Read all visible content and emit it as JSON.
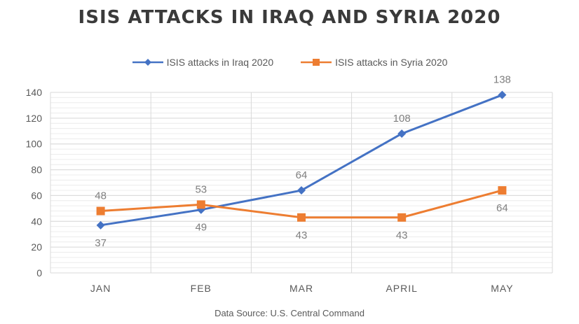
{
  "chart_data": {
    "type": "line",
    "title": "ISIS ATTACKS IN IRAQ AND SYRIA 2020",
    "categories": [
      "JAN",
      "FEB",
      "MAR",
      "APRIL",
      "MAY"
    ],
    "series": [
      {
        "name": "ISIS attacks in Iraq 2020",
        "values": [
          37,
          49,
          64,
          108,
          138
        ],
        "color": "#4472c4",
        "marker": "diamond"
      },
      {
        "name": "ISIS attacks in Syria 2020",
        "values": [
          48,
          53,
          43,
          43,
          64
        ],
        "color": "#ed7d31",
        "marker": "square"
      }
    ],
    "yticks": [
      0,
      20,
      40,
      60,
      80,
      100,
      120,
      140
    ],
    "ylim": [
      0,
      140
    ],
    "xlabel": "",
    "ylabel": "",
    "grid": true,
    "legend_position": "top",
    "source": "Data Source: U.S. Central Command"
  }
}
